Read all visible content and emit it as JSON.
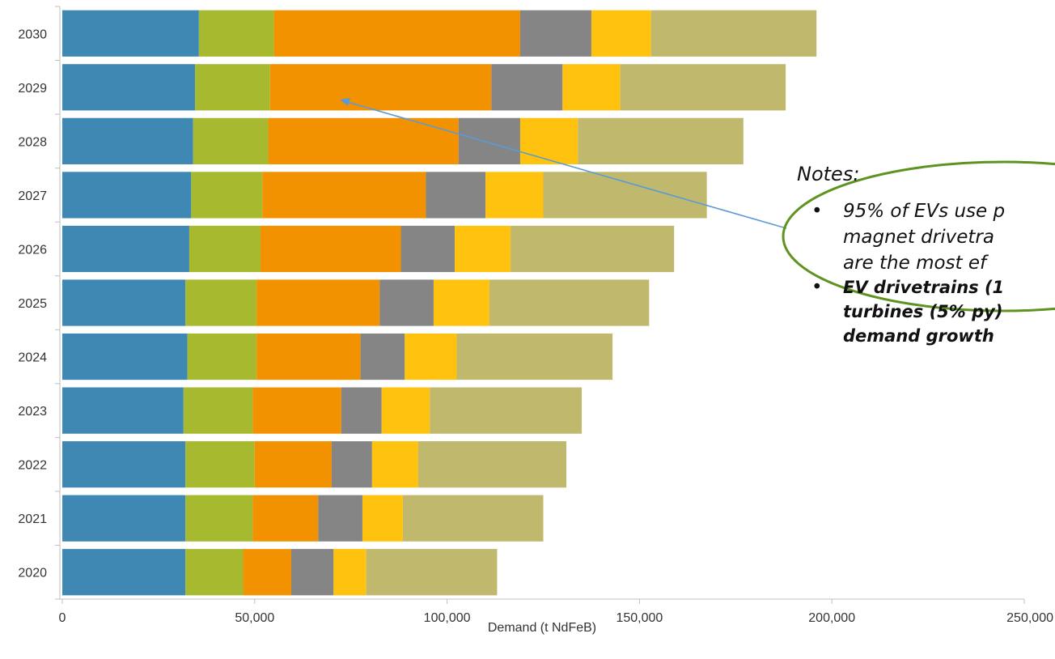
{
  "chart_data": {
    "type": "bar",
    "orientation": "horizontal",
    "stacked": true,
    "xlabel": "Demand (t NdFeB)",
    "xlim": [
      0,
      250000
    ],
    "x_ticks": [
      "0",
      "50,000",
      "100,000",
      "150,000",
      "200,000",
      "250,000"
    ],
    "categories": [
      "2020",
      "2021",
      "2022",
      "2023",
      "2024",
      "2025",
      "2026",
      "2027",
      "2028",
      "2029",
      "2030"
    ],
    "series": [
      {
        "color": "#3f88b4",
        "values": [
          32000,
          32000,
          32000,
          31500,
          32500,
          32000,
          33000,
          33500,
          34000,
          34500,
          35500
        ]
      },
      {
        "color": "#a6b92f",
        "values": [
          15000,
          17500,
          18000,
          18000,
          18000,
          18500,
          18500,
          18500,
          19500,
          19500,
          19500
        ]
      },
      {
        "color": "#f39200",
        "values": [
          12500,
          17000,
          20000,
          23000,
          27000,
          32000,
          36500,
          42500,
          49500,
          57500,
          64000
        ]
      },
      {
        "color": "#858585",
        "values": [
          11000,
          11500,
          10500,
          10500,
          11500,
          14000,
          14000,
          15500,
          16000,
          18500,
          18500
        ]
      },
      {
        "color": "#ffc20e",
        "values": [
          8500,
          10500,
          12000,
          12500,
          13500,
          14500,
          14500,
          15000,
          15000,
          15000,
          15500
        ]
      },
      {
        "color": "#bfb86d",
        "values": [
          34000,
          36500,
          38500,
          39500,
          40500,
          41500,
          42500,
          42500,
          43000,
          43000,
          43000
        ]
      }
    ]
  },
  "notes": {
    "title": "Notes:",
    "bullets": [
      {
        "lines": [
          "95% of EVs use p",
          "magnet drivetra",
          "are the most ef"
        ],
        "bold": false
      },
      {
        "lines": [
          "EV drivetrains (1",
          "turbines (5% py)",
          "demand growth"
        ],
        "bold": true
      }
    ],
    "bullet_symbol": "•",
    "ellipse_color": "#5f9320",
    "arrow_color": "#5b9bd5"
  }
}
